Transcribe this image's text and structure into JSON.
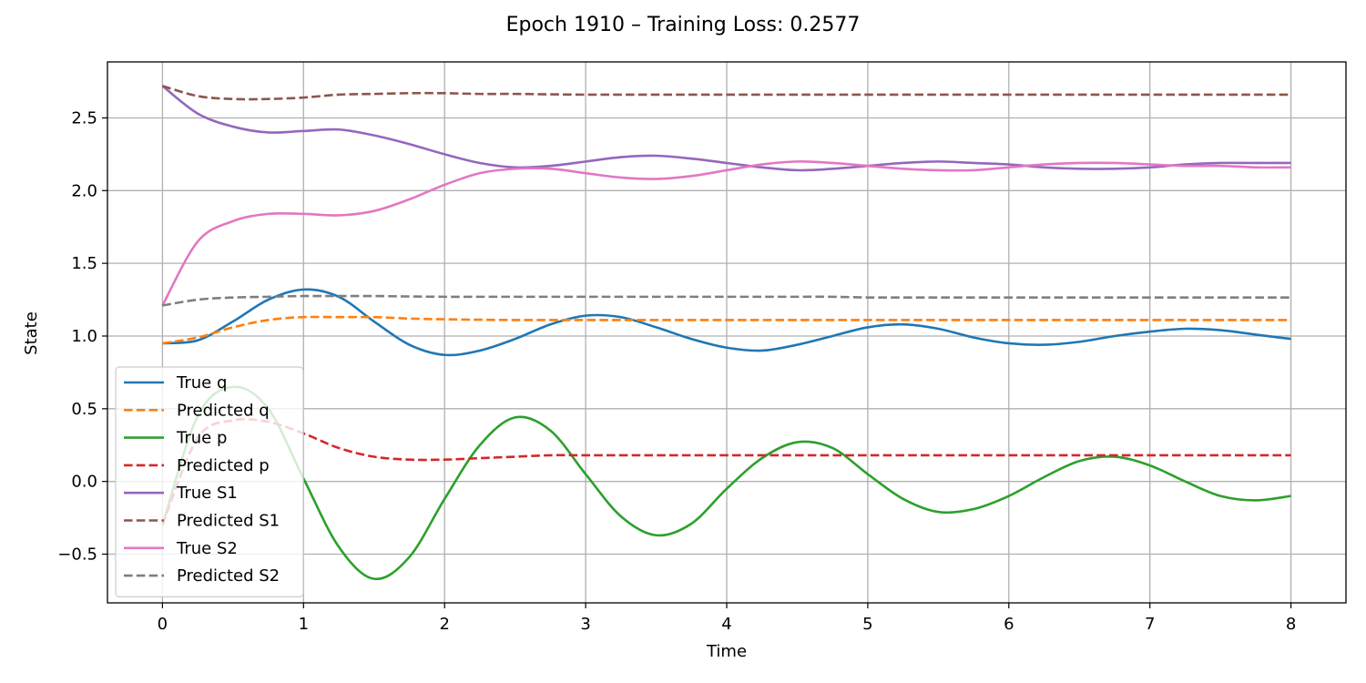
{
  "chart_data": {
    "type": "line",
    "title": "Epoch 1910 – Training Loss: 0.2577",
    "xlabel": "Time",
    "ylabel": "State",
    "xlim": [
      -0.39,
      8.39
    ],
    "ylim": [
      -0.835,
      2.885
    ],
    "x_ticks": [
      0,
      1,
      2,
      3,
      4,
      5,
      6,
      7,
      8
    ],
    "y_ticks": [
      -0.5,
      0.0,
      0.5,
      1.0,
      1.5,
      2.0,
      2.5
    ],
    "x_tick_labels": [
      "0",
      "1",
      "2",
      "3",
      "4",
      "5",
      "6",
      "7",
      "8"
    ],
    "y_tick_labels": [
      "−0.5",
      "0.0",
      "0.5",
      "1.0",
      "1.5",
      "2.0",
      "2.5"
    ],
    "grid": true,
    "legend_position": "lower-left",
    "x": [
      0,
      0.25,
      0.5,
      0.75,
      1.0,
      1.25,
      1.5,
      1.75,
      2.0,
      2.25,
      2.5,
      2.75,
      3.0,
      3.25,
      3.5,
      3.75,
      4.0,
      4.25,
      4.5,
      4.75,
      5.0,
      5.25,
      5.5,
      5.75,
      6.0,
      6.25,
      6.5,
      6.75,
      7.0,
      7.25,
      7.5,
      7.75,
      8.0
    ],
    "series": [
      {
        "name": "True q",
        "color": "#1f77b4",
        "dash": "solid",
        "values": [
          0.95,
          0.97,
          1.1,
          1.25,
          1.32,
          1.27,
          1.1,
          0.94,
          0.87,
          0.9,
          0.98,
          1.08,
          1.14,
          1.13,
          1.06,
          0.98,
          0.92,
          0.9,
          0.94,
          1.0,
          1.06,
          1.08,
          1.05,
          0.99,
          0.95,
          0.94,
          0.96,
          1.0,
          1.03,
          1.05,
          1.04,
          1.01,
          0.98
        ]
      },
      {
        "name": "Predicted q",
        "color": "#ff7f0e",
        "dash": "dashed",
        "values": [
          0.95,
          0.99,
          1.06,
          1.11,
          1.13,
          1.13,
          1.13,
          1.12,
          1.115,
          1.112,
          1.11,
          1.11,
          1.11,
          1.11,
          1.11,
          1.11,
          1.11,
          1.11,
          1.11,
          1.11,
          1.11,
          1.11,
          1.11,
          1.11,
          1.11,
          1.11,
          1.11,
          1.11,
          1.11,
          1.11,
          1.11,
          1.11,
          1.11
        ]
      },
      {
        "name": "True p",
        "color": "#2ca02c",
        "dash": "solid",
        "values": [
          -0.3,
          0.45,
          0.65,
          0.5,
          0.02,
          -0.45,
          -0.67,
          -0.52,
          -0.12,
          0.25,
          0.44,
          0.35,
          0.05,
          -0.24,
          -0.37,
          -0.29,
          -0.05,
          0.16,
          0.27,
          0.23,
          0.05,
          -0.12,
          -0.21,
          -0.19,
          -0.1,
          0.03,
          0.14,
          0.17,
          0.11,
          0.0,
          -0.1,
          -0.13,
          -0.1
        ]
      },
      {
        "name": "Predicted p",
        "color": "#d62728",
        "dash": "dashed",
        "values": [
          -0.3,
          0.3,
          0.42,
          0.41,
          0.33,
          0.23,
          0.17,
          0.15,
          0.15,
          0.16,
          0.17,
          0.18,
          0.18,
          0.18,
          0.18,
          0.18,
          0.18,
          0.18,
          0.18,
          0.18,
          0.18,
          0.18,
          0.18,
          0.18,
          0.18,
          0.18,
          0.18,
          0.18,
          0.18,
          0.18,
          0.18,
          0.18,
          0.18
        ]
      },
      {
        "name": "True S1",
        "color": "#9467bd",
        "dash": "solid",
        "values": [
          2.72,
          2.53,
          2.44,
          2.4,
          2.41,
          2.42,
          2.38,
          2.32,
          2.25,
          2.19,
          2.16,
          2.17,
          2.2,
          2.23,
          2.24,
          2.22,
          2.19,
          2.16,
          2.14,
          2.15,
          2.17,
          2.19,
          2.2,
          2.19,
          2.18,
          2.16,
          2.15,
          2.15,
          2.16,
          2.18,
          2.19,
          2.19,
          2.19
        ]
      },
      {
        "name": "Predicted S1",
        "color": "#8c564b",
        "dash": "dashed",
        "values": [
          2.72,
          2.65,
          2.63,
          2.63,
          2.64,
          2.66,
          2.665,
          2.67,
          2.67,
          2.665,
          2.665,
          2.662,
          2.66,
          2.66,
          2.66,
          2.66,
          2.66,
          2.66,
          2.66,
          2.66,
          2.66,
          2.66,
          2.66,
          2.66,
          2.66,
          2.66,
          2.66,
          2.66,
          2.66,
          2.66,
          2.66,
          2.66,
          2.66
        ]
      },
      {
        "name": "True S2",
        "color": "#e377c2",
        "dash": "solid",
        "values": [
          1.21,
          1.65,
          1.79,
          1.84,
          1.84,
          1.83,
          1.86,
          1.94,
          2.04,
          2.12,
          2.15,
          2.15,
          2.12,
          2.09,
          2.08,
          2.1,
          2.14,
          2.18,
          2.2,
          2.19,
          2.17,
          2.15,
          2.14,
          2.14,
          2.16,
          2.18,
          2.19,
          2.19,
          2.18,
          2.17,
          2.17,
          2.16,
          2.16
        ]
      },
      {
        "name": "Predicted S2",
        "color": "#7f7f7f",
        "dash": "dashed",
        "values": [
          1.21,
          1.25,
          1.265,
          1.27,
          1.275,
          1.275,
          1.275,
          1.272,
          1.27,
          1.27,
          1.27,
          1.27,
          1.27,
          1.27,
          1.27,
          1.27,
          1.27,
          1.27,
          1.27,
          1.27,
          1.265,
          1.265,
          1.265,
          1.265,
          1.265,
          1.265,
          1.265,
          1.265,
          1.265,
          1.265,
          1.265,
          1.265,
          1.265
        ]
      }
    ]
  }
}
